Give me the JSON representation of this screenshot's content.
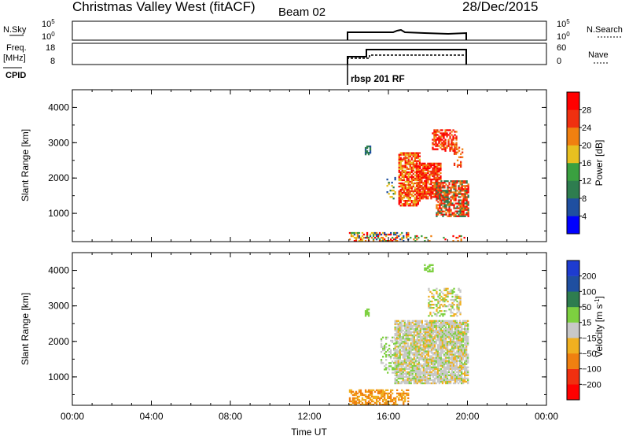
{
  "header": {
    "title": "Christmas Valley West (fitACF)",
    "beam": "Beam 02",
    "date": "28/Dec/2015"
  },
  "nsky_panel": {
    "left_label": "N.Sky",
    "left_ticks": [
      "10^5",
      "10^0"
    ],
    "right_ticks": [
      "10^5",
      "10^0"
    ],
    "right_label": "N.Search"
  },
  "freq_panel": {
    "left_label_1": "Freq.",
    "left_label_2": "[MHz]",
    "left_ticks": [
      "18",
      "8"
    ],
    "right_ticks": [
      "60",
      "0"
    ],
    "right_label": "Nave",
    "cpid_label": "CPID",
    "cpid_value": "rbsp 201 RF"
  },
  "chart_data": [
    {
      "type": "heatmap",
      "name": "power",
      "ylabel": "Slant Range [km]",
      "xlabel": "",
      "x_ticks": [
        "00:00",
        "04:00",
        "08:00",
        "12:00",
        "16:00",
        "20:00",
        "00:00"
      ],
      "y_ticks": [
        "4000",
        "3000",
        "2000",
        "1000"
      ],
      "xlim_hours": [
        0,
        24
      ],
      "ylim_km": [
        200,
        4500
      ],
      "colorbar": {
        "label": "Power [dB]",
        "ticks": [
          "28",
          "24",
          "20",
          "16",
          "12",
          "8",
          "4"
        ],
        "colors": [
          "#0000ff",
          "#1f4fa0",
          "#2e7d4f",
          "#3aa040",
          "#e8c020",
          "#f08010",
          "#f03010",
          "#ff0000"
        ]
      },
      "regions": [
        {
          "t0": 14.0,
          "t1": 17.0,
          "r0": 200,
          "r1": 450,
          "colors": [
            "#1f4fa0",
            "#3aa040",
            "#e8c020",
            "#f08010",
            "#ff0000"
          ],
          "density": 0.55
        },
        {
          "t0": 17.0,
          "t1": 20.0,
          "r0": 200,
          "r1": 350,
          "colors": [
            "#3aa040",
            "#f08010",
            "#ff0000"
          ],
          "density": 0.12
        },
        {
          "t0": 14.8,
          "t1": 15.1,
          "r0": 2650,
          "r1": 2950,
          "colors": [
            "#1f4fa0",
            "#2e7d4f"
          ],
          "density": 0.6
        },
        {
          "t0": 15.9,
          "t1": 16.3,
          "r0": 1400,
          "r1": 2000,
          "colors": [
            "#1f4fa0",
            "#2e7d4f",
            "#e8c020"
          ],
          "density": 0.3
        },
        {
          "t0": 16.5,
          "t1": 17.6,
          "r0": 1200,
          "r1": 2700,
          "colors": [
            "#e8c020",
            "#f08010",
            "#ff0000",
            "#f03010"
          ],
          "density": 0.75
        },
        {
          "t0": 17.4,
          "t1": 18.6,
          "r0": 1400,
          "r1": 2400,
          "colors": [
            "#ff0000",
            "#f03010",
            "#f08010"
          ],
          "density": 0.8
        },
        {
          "t0": 18.4,
          "t1": 20.0,
          "r0": 900,
          "r1": 1900,
          "colors": [
            "#ff0000",
            "#f03010",
            "#f08010",
            "#2e7d4f"
          ],
          "density": 0.75
        },
        {
          "t0": 18.2,
          "t1": 19.4,
          "r0": 2750,
          "r1": 3350,
          "colors": [
            "#ff0000",
            "#f03010",
            "#f08010"
          ],
          "density": 0.6
        },
        {
          "t0": 19.3,
          "t1": 19.7,
          "r0": 2300,
          "r1": 2900,
          "colors": [
            "#f03010",
            "#f08010"
          ],
          "density": 0.3
        }
      ]
    },
    {
      "type": "heatmap",
      "name": "velocity",
      "ylabel": "Slant Range [km]",
      "xlabel": "Time UT",
      "x_ticks": [
        "00:00",
        "04:00",
        "08:00",
        "12:00",
        "16:00",
        "20:00",
        "00:00"
      ],
      "y_ticks": [
        "4000",
        "3000",
        "2000",
        "1000"
      ],
      "xlim_hours": [
        0,
        24
      ],
      "ylim_km": [
        200,
        4500
      ],
      "colorbar": {
        "label": "Velocity [m s^-1]",
        "ticks": [
          "200",
          "100",
          "50",
          "15",
          "-15",
          "-50",
          "-100",
          "-200"
        ],
        "colors": [
          "#ff0000",
          "#f03010",
          "#f08010",
          "#f0b020",
          "#c8c8c8",
          "#7dd040",
          "#2e7d4f",
          "#1f4fa0",
          "#1e3cd0"
        ]
      },
      "regions": [
        {
          "t0": 14.0,
          "t1": 17.0,
          "r0": 200,
          "r1": 650,
          "colors": [
            "#f0b020",
            "#f08010"
          ],
          "density": 0.6
        },
        {
          "t0": 14.8,
          "t1": 15.0,
          "r0": 2700,
          "r1": 2900,
          "colors": [
            "#7dd040"
          ],
          "density": 0.5
        },
        {
          "t0": 15.6,
          "t1": 16.4,
          "r0": 1100,
          "r1": 2100,
          "colors": [
            "#c8c8c8",
            "#7dd040"
          ],
          "density": 0.3
        },
        {
          "t0": 16.3,
          "t1": 20.0,
          "r0": 800,
          "r1": 2600,
          "colors": [
            "#c8c8c8",
            "#c8c8c8",
            "#c8c8c8",
            "#7dd040",
            "#f0b020"
          ],
          "density": 0.85
        },
        {
          "t0": 18.0,
          "t1": 19.6,
          "r0": 2700,
          "r1": 3500,
          "colors": [
            "#c8c8c8",
            "#7dd040",
            "#f0b020"
          ],
          "density": 0.45
        },
        {
          "t0": 17.8,
          "t1": 18.2,
          "r0": 3950,
          "r1": 4150,
          "colors": [
            "#7dd040"
          ],
          "density": 0.5
        }
      ]
    }
  ]
}
